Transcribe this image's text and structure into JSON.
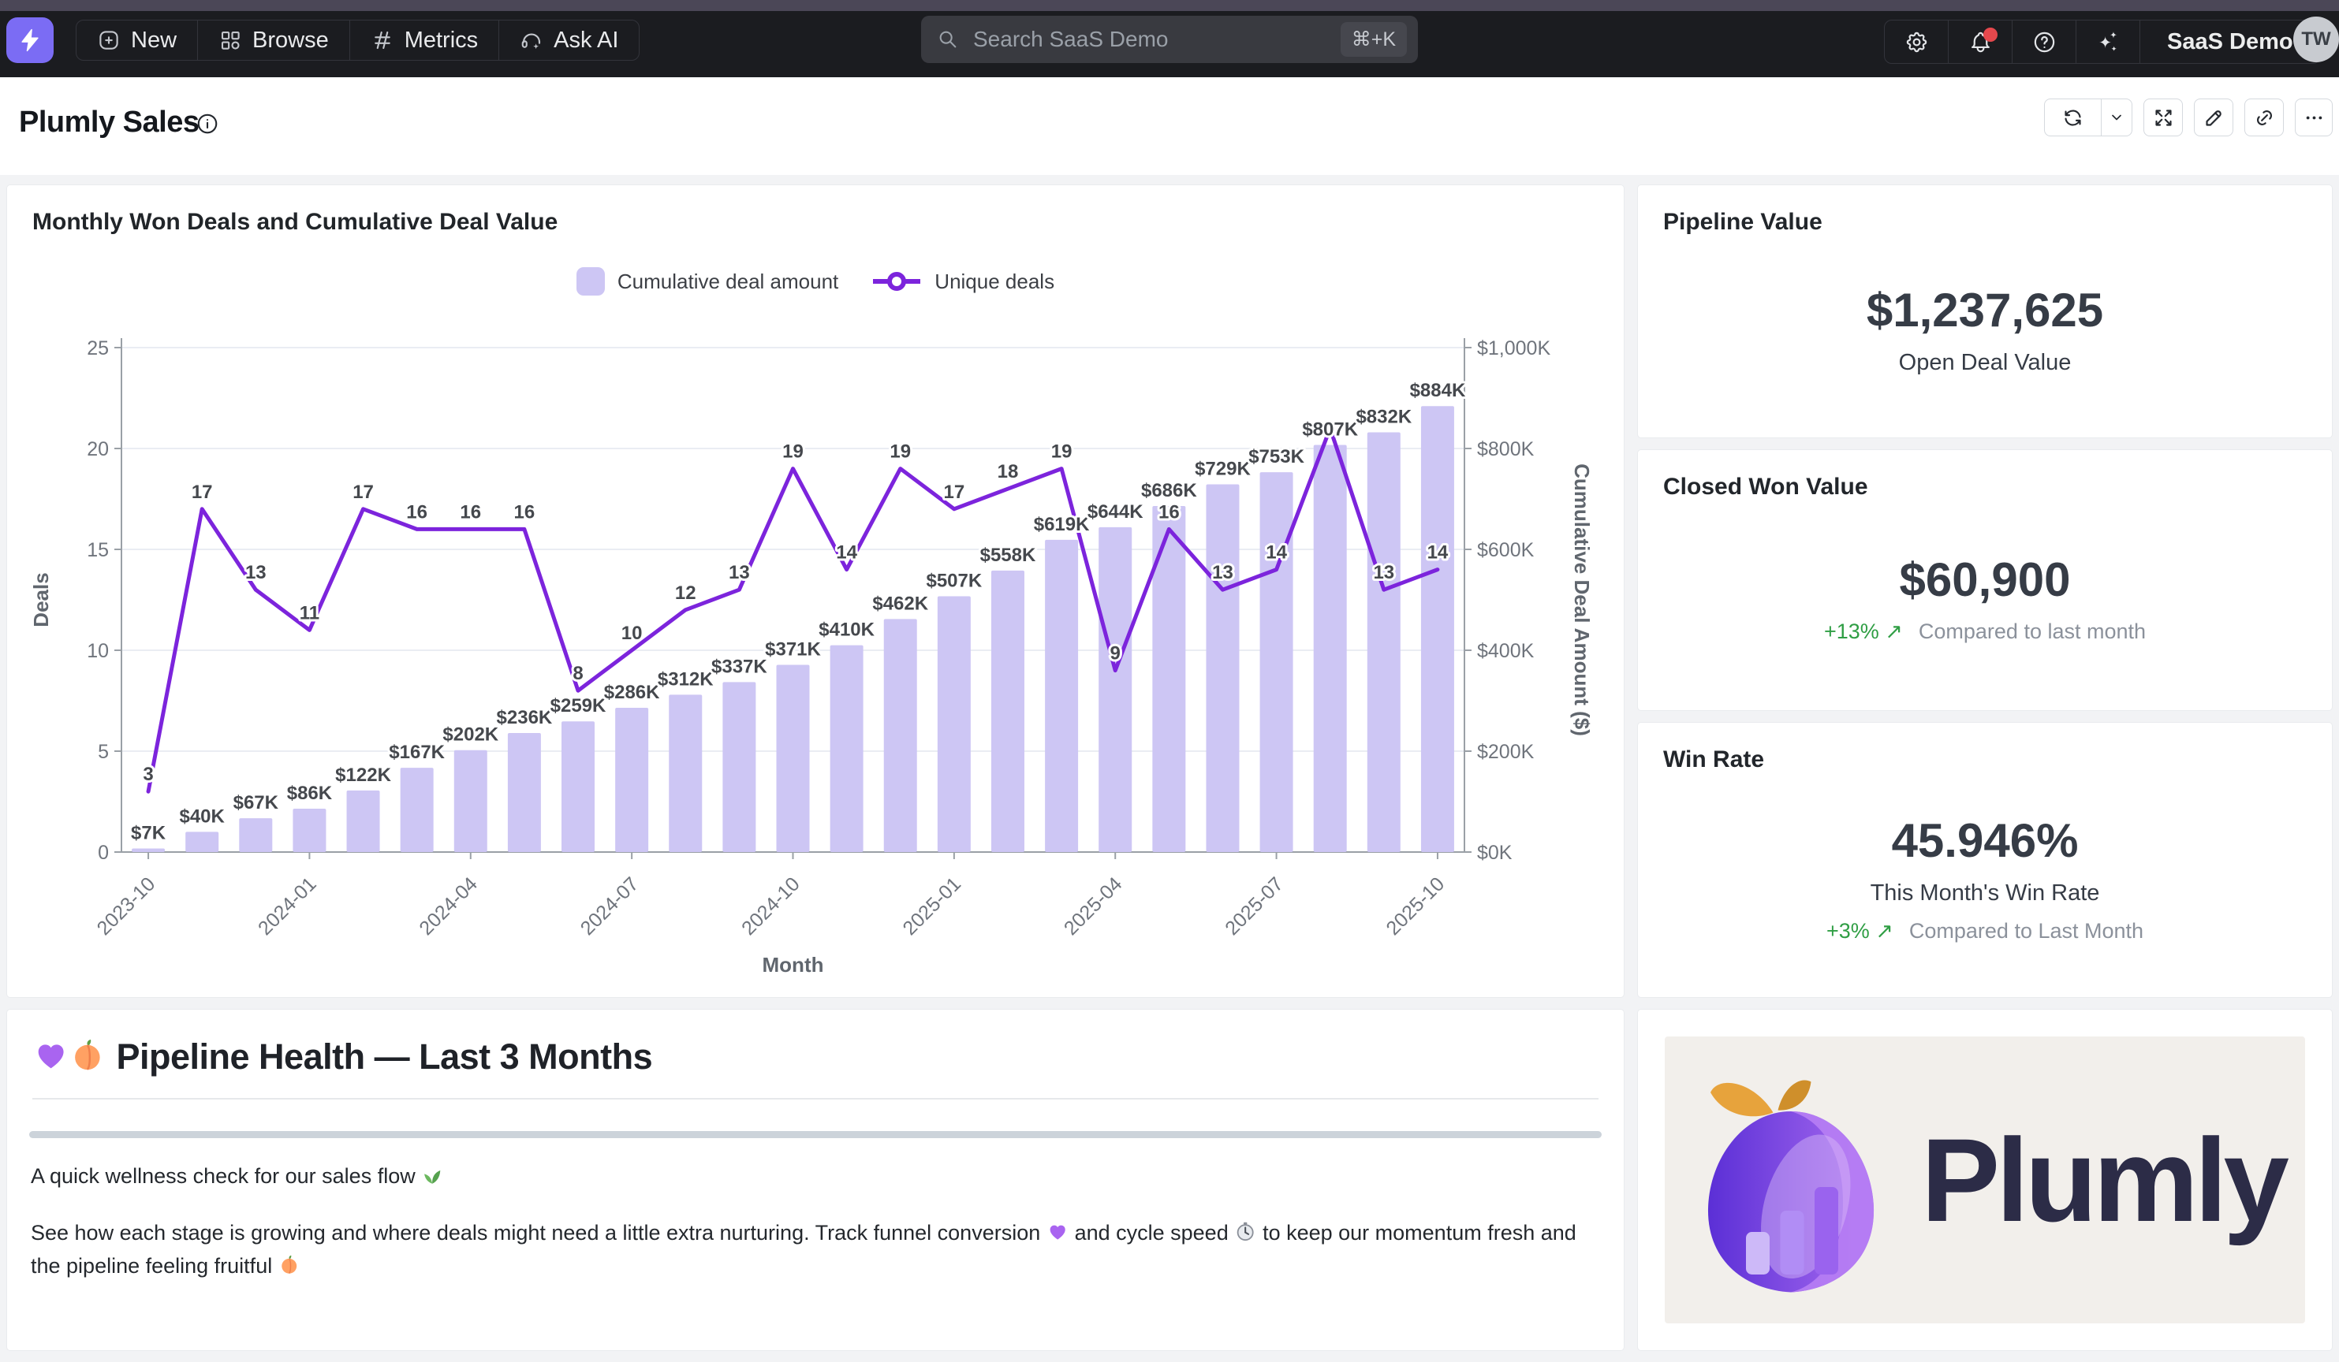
{
  "topbar": {
    "nav": [
      {
        "label": "New",
        "icon": "plus-square-icon"
      },
      {
        "label": "Browse",
        "icon": "category-grid-icon"
      },
      {
        "label": "Metrics",
        "icon": "hash-icon"
      },
      {
        "label": "Ask AI",
        "icon": "headset-sparkle-icon"
      }
    ],
    "search": {
      "placeholder": "Search SaaS Demo",
      "shortcut": "⌘+K"
    },
    "right_icons": [
      "gear-icon",
      "bell-icon",
      "help-icon",
      "sparkles-icon"
    ],
    "workspace": "SaaS Demo",
    "avatar": "TW"
  },
  "header": {
    "title": "Plumly Sales",
    "toolbar_icons": [
      "refresh-icon",
      "chevron-down-icon",
      "maximize-icon",
      "pencil-icon",
      "link-icon",
      "ellipsis-icon"
    ]
  },
  "chart_data": {
    "type": "bar+line combo",
    "title": "Monthly Won Deals and Cumulative Deal Value",
    "categories": [
      "2023-10",
      "2023-11",
      "2023-12",
      "2024-01",
      "2024-02",
      "2024-03",
      "2024-04",
      "2024-05",
      "2024-06",
      "2024-07",
      "2024-08",
      "2024-09",
      "2024-10",
      "2024-11",
      "2024-12",
      "2025-01",
      "2025-02",
      "2025-03",
      "2025-04",
      "2025-05",
      "2025-06",
      "2025-07",
      "2025-08",
      "2025-09",
      "2025-10"
    ],
    "series": [
      {
        "name": "Cumulative deal amount",
        "type": "bar",
        "axis": "right",
        "values_k": [
          7,
          40,
          67,
          86,
          122,
          167,
          202,
          236,
          259,
          286,
          312,
          337,
          371,
          410,
          462,
          507,
          558,
          619,
          644,
          686,
          729,
          753,
          807,
          832,
          884
        ],
        "labels": [
          "$7K",
          "$40K",
          "$67K",
          "$86K",
          "$122K",
          "$167K",
          "$202K",
          "$236K",
          "$259K",
          "$286K",
          "$312K",
          "$337K",
          "$371K",
          "$410K",
          "$462K",
          "$507K",
          "$558K",
          "$619K",
          "$644K",
          "$686K",
          "$729K",
          "$753K",
          "$807K",
          "$832K",
          "$884K"
        ]
      },
      {
        "name": "Unique deals",
        "type": "line",
        "axis": "left",
        "values": [
          3,
          17,
          13,
          11,
          17,
          16,
          16,
          16,
          8,
          10,
          12,
          13,
          19,
          14,
          19,
          17,
          18,
          19,
          9,
          16,
          13,
          14,
          21,
          13,
          14
        ]
      }
    ],
    "line_label_hidden_at": [
      22
    ],
    "left_axis": {
      "label": "Deals",
      "ticks": [
        0,
        5,
        10,
        15,
        20,
        25
      ],
      "max": 25
    },
    "right_axis": {
      "label": "Cumulative Deal Amount ($)",
      "ticks": [
        "$0K",
        "$200K",
        "$400K",
        "$600K",
        "$800K",
        "$1,000K"
      ],
      "max_k": 1000
    },
    "xlabel": "Month",
    "x_tick_every": 3,
    "x_ticks": [
      "2023-10",
      "2024-01",
      "2024-04",
      "2024-07",
      "2024-10",
      "2025-01",
      "2025-04",
      "2025-07",
      "2025-10"
    ],
    "grid": true,
    "legend_position": "top-center"
  },
  "cards": {
    "pipeline": {
      "title": "Pipeline Value",
      "value": "$1,237,625",
      "label": "Open Deal Value"
    },
    "closed_won": {
      "title": "Closed Won Value",
      "value": "$60,900",
      "delta": "+13% ↗",
      "note": "Compared to last month"
    },
    "win_rate": {
      "title": "Win Rate",
      "value": "45.946%",
      "label": "This Month's Win Rate",
      "delta": "+3% ↗",
      "note": "Compared to Last Month"
    }
  },
  "notes": {
    "heading": "💜🍑 Pipeline Health — Last 3 Months",
    "p1": "A quick wellness check for our sales flow 🌿",
    "p2": "See how each stage is growing and where deals might need a little extra nurturing. Track funnel conversion 💜 and cycle speed ⏱️ to keep our momentum fresh and the pipeline feeling fruitful 🍑"
  },
  "logo_card": {
    "wordmark": "Plumly"
  },
  "colors": {
    "accent_purple": "#7c24dc",
    "bar_fill": "#cdc6f4",
    "green": "#2f9e44",
    "nav_bg": "#1b1c20",
    "top_strip": "#4b4757",
    "logo_bg": "#7b6cf4",
    "page_bg": "#f2f3f5",
    "beige": "#f2efeb",
    "navy": "#2c2c47",
    "red_dot": "#e5484d"
  }
}
